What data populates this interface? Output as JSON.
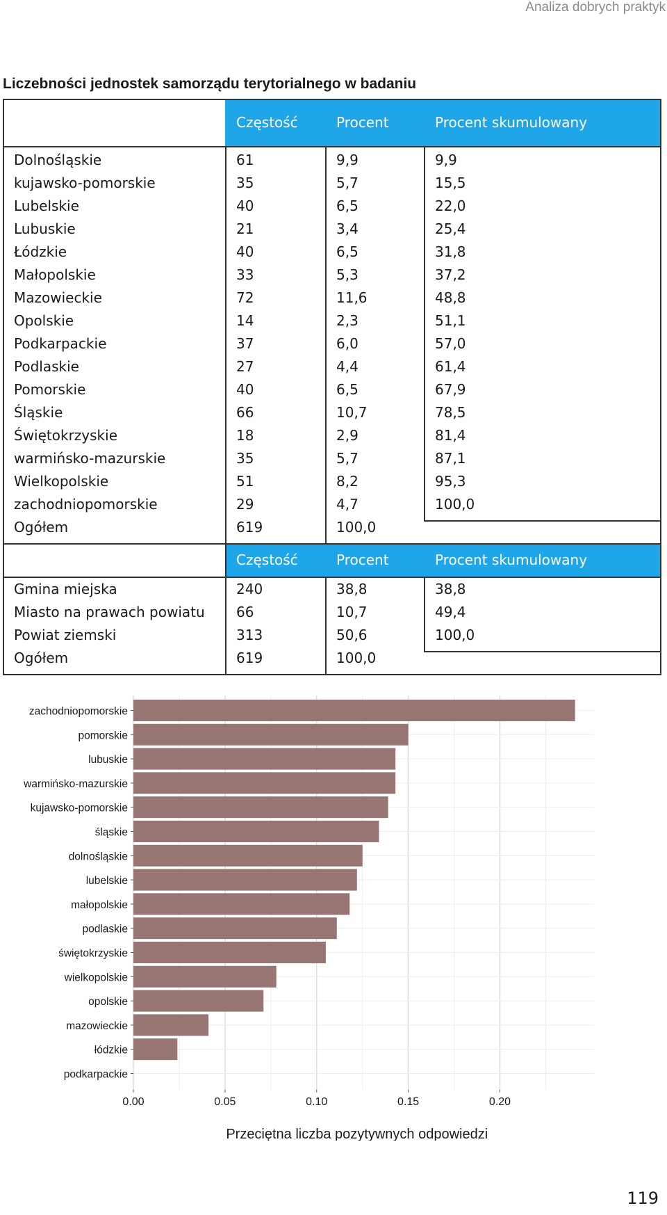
{
  "header": {
    "running_title": "Analiza dobrych praktyk"
  },
  "section_title": "Liczebności jednostek samorządu terytorialnego w badaniu",
  "table1": {
    "headers": [
      "Częstość",
      "Procent",
      "Procent skumulowany"
    ],
    "rows": [
      [
        "Dolnośląskie",
        "61",
        "9,9",
        "9,9"
      ],
      [
        "kujawsko-pomorskie",
        "35",
        "5,7",
        "15,5"
      ],
      [
        "Lubelskie",
        "40",
        "6,5",
        "22,0"
      ],
      [
        "Lubuskie",
        "21",
        "3,4",
        "25,4"
      ],
      [
        "Łódzkie",
        "40",
        "6,5",
        "31,8"
      ],
      [
        "Małopolskie",
        "33",
        "5,3",
        "37,2"
      ],
      [
        "Mazowieckie",
        "72",
        "11,6",
        "48,8"
      ],
      [
        "Opolskie",
        "14",
        "2,3",
        "51,1"
      ],
      [
        "Podkarpackie",
        "37",
        "6,0",
        "57,0"
      ],
      [
        "Podlaskie",
        "27",
        "4,4",
        "61,4"
      ],
      [
        "Pomorskie",
        "40",
        "6,5",
        "67,9"
      ],
      [
        "Śląskie",
        "66",
        "10,7",
        "78,5"
      ],
      [
        "Świętokrzyskie",
        "18",
        "2,9",
        "81,4"
      ],
      [
        "warmińsko-mazurskie",
        "35",
        "5,7",
        "87,1"
      ],
      [
        "Wielkopolskie",
        "51",
        "8,2",
        "95,3"
      ],
      [
        "zachodniopomorskie",
        "29",
        "4,7",
        "100,0"
      ],
      [
        "Ogółem",
        "619",
        "100,0",
        ""
      ]
    ]
  },
  "table2": {
    "headers": [
      "Częstość",
      "Procent",
      "Procent skumulowany"
    ],
    "rows": [
      [
        "Gmina miejska",
        "240",
        "38,8",
        "38,8"
      ],
      [
        "Miasto na prawach powiatu",
        "66",
        "10,7",
        "49,4"
      ],
      [
        "Powiat ziemski",
        "313",
        "50,6",
        "100,0"
      ],
      [
        "Ogółem",
        "619",
        "100,0",
        ""
      ]
    ]
  },
  "chart_data": {
    "type": "bar",
    "orientation": "horizontal",
    "categories": [
      "zachodniopomorskie",
      "pomorskie",
      "lubuskie",
      "warmińsko-mazurskie",
      "kujawsko-pomorskie",
      "śląskie",
      "dolnośląskie",
      "lubelskie",
      "małopolskie",
      "podlaskie",
      "świętokrzyskie",
      "wielkopolskie",
      "opolskie",
      "mazowieckie",
      "łódzkie",
      "podkarpackie"
    ],
    "values": [
      0.241,
      0.15,
      0.143,
      0.143,
      0.139,
      0.134,
      0.125,
      0.122,
      0.118,
      0.111,
      0.105,
      0.078,
      0.071,
      0.041,
      0.024,
      0.0
    ],
    "xticks": [
      "0.00",
      "0.05",
      "0.10",
      "0.15",
      "0.20"
    ],
    "xlim": [
      0,
      0.24
    ],
    "xlabel": "Przeciętna liczba pozytywnych odpowiedzi",
    "ylabel": "",
    "grid": true,
    "bar_color": "#967572"
  },
  "page_number": "119"
}
